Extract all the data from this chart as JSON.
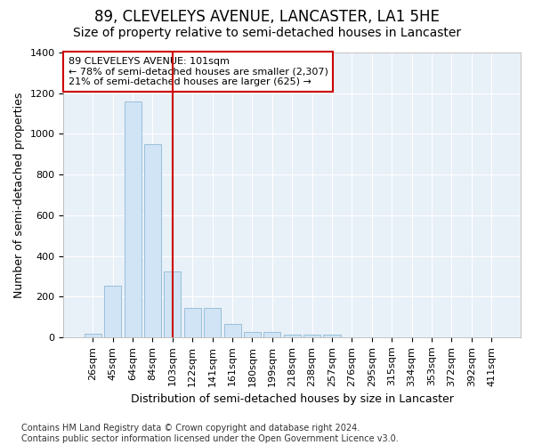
{
  "title": "89, CLEVELEYS AVENUE, LANCASTER, LA1 5HE",
  "subtitle": "Size of property relative to semi-detached houses in Lancaster",
  "xlabel": "Distribution of semi-detached houses by size in Lancaster",
  "ylabel": "Number of semi-detached properties",
  "categories": [
    "26sqm",
    "45sqm",
    "64sqm",
    "84sqm",
    "103sqm",
    "122sqm",
    "141sqm",
    "161sqm",
    "180sqm",
    "199sqm",
    "218sqm",
    "238sqm",
    "257sqm",
    "276sqm",
    "295sqm",
    "315sqm",
    "334sqm",
    "353sqm",
    "372sqm",
    "392sqm",
    "411sqm"
  ],
  "values": [
    18,
    255,
    1160,
    950,
    325,
    145,
    145,
    65,
    27,
    27,
    15,
    15,
    15,
    0,
    0,
    0,
    0,
    0,
    0,
    0,
    0
  ],
  "bar_color": "#d0e4f5",
  "bar_edge_color": "#9abfd8",
  "vline_x_index": 4,
  "vline_color": "#cc0000",
  "annotation_text": "89 CLEVELEYS AVENUE: 101sqm\n← 78% of semi-detached houses are smaller (2,307)\n21% of semi-detached houses are larger (625) →",
  "annotation_box_facecolor": "#ffffff",
  "annotation_box_edgecolor": "#cc0000",
  "ylim": [
    0,
    1400
  ],
  "yticks": [
    0,
    200,
    400,
    600,
    800,
    1000,
    1200,
    1400
  ],
  "footer": "Contains HM Land Registry data © Crown copyright and database right 2024.\nContains public sector information licensed under the Open Government Licence v3.0.",
  "fig_facecolor": "#ffffff",
  "axes_facecolor": "#e8f0f8",
  "grid_color": "#ffffff",
  "title_fontsize": 12,
  "subtitle_fontsize": 10,
  "axis_label_fontsize": 9,
  "tick_fontsize": 8,
  "annotation_fontsize": 8,
  "footer_fontsize": 7
}
